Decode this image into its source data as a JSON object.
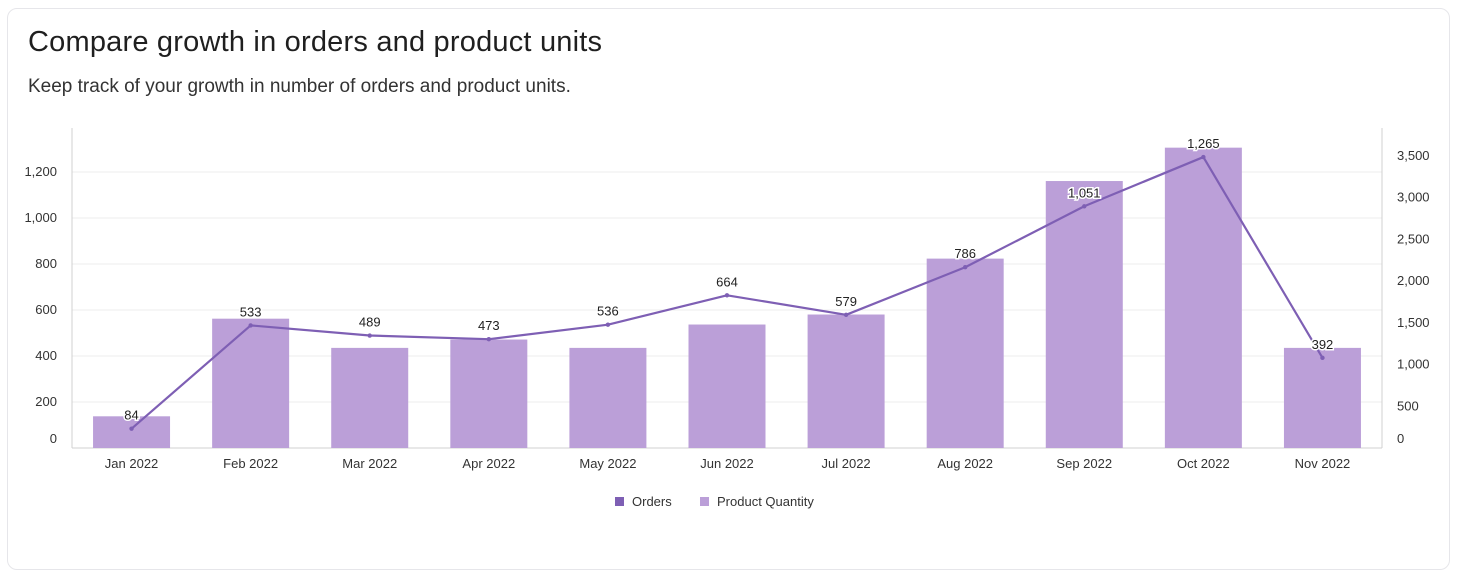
{
  "header": {
    "title": "Compare growth in orders and product units",
    "subtitle": "Keep track of your growth in number of orders and product units."
  },
  "colors": {
    "bar": "#bb9fd8",
    "line": "#7e5fb4",
    "grid": "#eeeeee",
    "axis": "#d0d0d0"
  },
  "chart_data": {
    "type": "bar",
    "categories": [
      "Jan 2022",
      "Feb 2022",
      "Mar 2022",
      "Apr 2022",
      "May 2022",
      "Jun 2022",
      "Jul 2022",
      "Aug 2022",
      "Sep 2022",
      "Oct 2022",
      "Nov 2022"
    ],
    "series": [
      {
        "name": "Orders",
        "type": "line",
        "axis": "left",
        "values": [
          84,
          533,
          489,
          473,
          536,
          664,
          579,
          786,
          1051,
          1265,
          392
        ]
      },
      {
        "name": "Product Quantity",
        "type": "bar",
        "axis": "right",
        "values": [
          380,
          1550,
          1200,
          1300,
          1200,
          1480,
          1600,
          2270,
          3200,
          3600,
          1200
        ]
      }
    ],
    "left_axis": {
      "min": 0,
      "max": 1200,
      "ticks": [
        0,
        200,
        400,
        600,
        800,
        1000,
        1200
      ],
      "tick_labels": [
        "0",
        "200",
        "400",
        "600",
        "800",
        "1,000",
        "1,200"
      ]
    },
    "right_axis": {
      "min": 0,
      "max": 3500,
      "ticks": [
        0,
        500,
        1000,
        1500,
        2000,
        2500,
        3000,
        3500
      ],
      "tick_labels": [
        "0",
        "500",
        "1,000",
        "1,500",
        "2,000",
        "2,500",
        "3,000",
        "3,500"
      ]
    },
    "data_labels": [
      "84",
      "533",
      "489",
      "473",
      "536",
      "664",
      "579",
      "786",
      "1,051",
      "1,265",
      "392"
    ],
    "legend": [
      "Orders",
      "Product Quantity"
    ],
    "legend_position": "bottom-center",
    "grid": true
  }
}
